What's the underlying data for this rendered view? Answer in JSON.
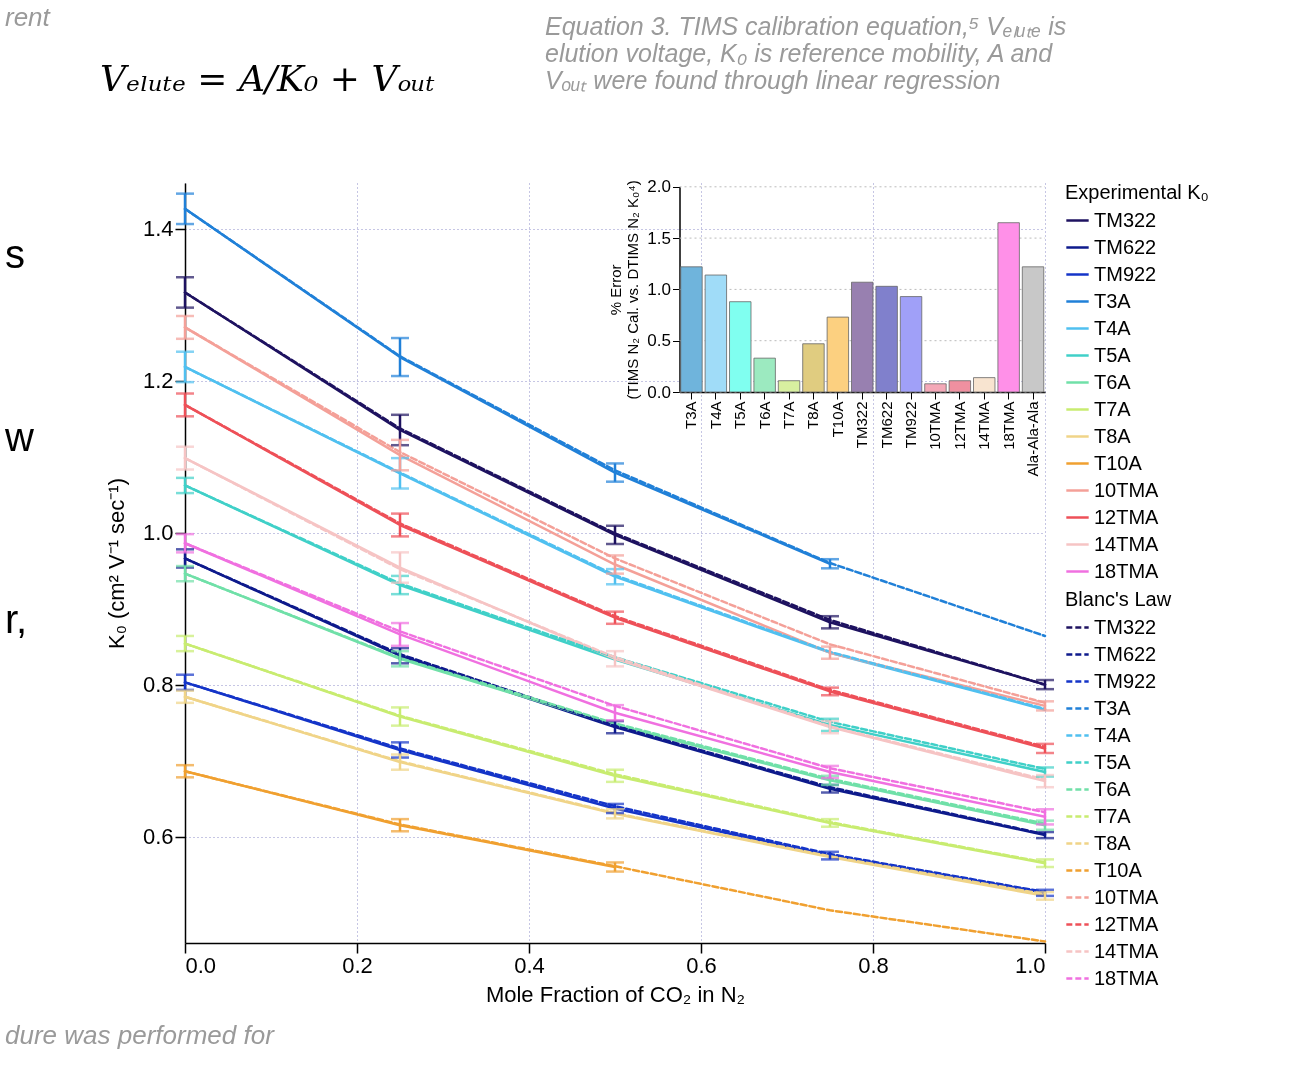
{
  "chart_data": [
    {
      "type": "line",
      "xlabel": "Mole Fraction of CO₂ in N₂",
      "ylabel": "K₀ (cm² V⁻¹ sec⁻¹)",
      "legend_title": [
        "Experimental K₀",
        "Blanc's Law"
      ],
      "legend": "right",
      "grid": true,
      "x": [
        0,
        0.25,
        0.5,
        0.75,
        1
      ],
      "xlim": [
        0,
        1
      ],
      "ylim": [
        0.46,
        1.46
      ],
      "xticks": [
        {
          "value": 0,
          "label": "0.0"
        },
        0.2,
        0.4,
        0.6,
        0.8,
        {
          "value": 1,
          "label": "1.0"
        }
      ],
      "yticks": [
        0.6,
        0.8,
        {
          "value": 1,
          "label": "1.0"
        },
        1.2,
        1.4
      ],
      "annotations": [
        "Vₑₗᵤₜₑ = A/K₀ + Vₒᵤₜ",
        "Equation 3. TIMS calibration equation,⁵ Vₑₗᵤₜₑ is elution voltage, K₀ is reference mobility, A and Vₒᵤₜ were found through linear regression",
        "rent",
        "s",
        "w",
        "r,",
        "dure was performed for"
      ],
      "series": [
        {
          "name": "TM322",
          "color": "#1e1260",
          "line_style": "solid",
          "values": [
            1.316,
            1.135,
            0.997,
            0.882,
            0.8
          ],
          "errors": [
            0.02,
            0.02,
            0.012,
            0.008,
            0.006
          ]
        },
        {
          "name": "TM622",
          "color": "#0e1a8c",
          "line_style": "solid",
          "values": [
            0.966,
            0.838,
            0.744,
            0.663,
            0.602
          ],
          "errors": [
            0.012,
            0.01,
            0.008,
            0.005,
            0.004
          ]
        },
        {
          "name": "TM922",
          "color": "#1434c8",
          "line_style": "solid",
          "values": [
            0.803,
            0.714,
            0.637,
            0.575,
            0.526
          ],
          "errors": [
            0.01,
            0.01,
            0.006,
            0.005,
            0.004
          ]
        },
        {
          "name": "T3A",
          "color": "#2080d8",
          "line_style": "solid",
          "values": [
            1.426,
            1.231,
            1.079,
            0.959,
            null
          ],
          "errors": [
            0.02,
            0.025,
            0.012,
            0.006,
            null
          ]
        },
        {
          "name": "T4A",
          "color": "#50c0f0",
          "line_style": "solid",
          "values": [
            1.218,
            1.078,
            0.942,
            0.842,
            0.767
          ],
          "errors": [
            0.02,
            0.02,
            0.01,
            null,
            null
          ]
        },
        {
          "name": "T5A",
          "color": "#40d0c8",
          "line_style": "solid",
          "values": [
            1.062,
            0.931,
            0.833,
            0.747,
            0.685
          ],
          "errors": [
            0.01,
            0.012,
            null,
            0.008,
            0.006
          ]
        },
        {
          "name": "T6A",
          "color": "#70e0a8",
          "line_style": "solid",
          "values": [
            0.946,
            0.834,
            0.747,
            0.674,
            0.615
          ],
          "errors": [
            0.01,
            0.01,
            null,
            0.006,
            0.006
          ]
        },
        {
          "name": "T7A",
          "color": "#c8ec70",
          "line_style": "solid",
          "values": [
            0.854,
            0.758,
            0.68,
            0.618,
            0.565
          ],
          "errors": [
            0.01,
            0.012,
            0.008,
            0.005,
            0.005
          ]
        },
        {
          "name": "T8A",
          "color": "#f0d488",
          "line_style": "solid",
          "values": [
            0.784,
            0.698,
            0.63,
            0.573,
            0.522
          ],
          "errors": [
            0.008,
            0.01,
            0.006,
            null,
            0.005
          ]
        },
        {
          "name": "T10A",
          "color": "#f0a030",
          "line_style": "solid",
          "values": [
            0.686,
            0.615,
            0.56,
            null,
            null
          ],
          "errors": [
            0.008,
            0.008,
            0.006,
            null,
            null
          ]
        },
        {
          "name": "10TMA",
          "color": "#f4a098",
          "line_style": "solid",
          "values": [
            1.27,
            1.102,
            0.958,
            0.842,
            0.772
          ],
          "errors": [
            0.015,
            0.02,
            0.012,
            0.008,
            0.006
          ]
        },
        {
          "name": "12TMA",
          "color": "#ee5058",
          "line_style": "solid",
          "values": [
            1.168,
            1.01,
            0.888,
            0.791,
            0.716
          ],
          "errors": [
            0.015,
            0.015,
            0.008,
            0.005,
            0.006
          ]
        },
        {
          "name": "14TMA",
          "color": "#f6c4c4",
          "line_style": "solid",
          "values": [
            1.098,
            0.954,
            0.834,
            0.744,
            0.673
          ],
          "errors": [
            0.015,
            0.02,
            0.01,
            0.008,
            0.008
          ]
        },
        {
          "name": "18TMA",
          "color": "#f070e0",
          "line_style": "solid",
          "values": [
            0.986,
            0.866,
            0.763,
            0.685,
            0.626
          ],
          "errors": [
            0.012,
            0.015,
            0.01,
            0.008,
            0.01
          ]
        },
        {
          "name": "TM322",
          "color": "#1e1260",
          "line_style": "dashed",
          "values": [
            1.316,
            1.137,
            0.999,
            0.885,
            0.8
          ]
        },
        {
          "name": "TM622",
          "color": "#0e1a8c",
          "line_style": "dashed",
          "values": [
            0.966,
            0.84,
            0.746,
            0.665,
            0.603
          ]
        },
        {
          "name": "TM922",
          "color": "#1434c8",
          "line_style": "dashed",
          "values": [
            0.803,
            0.716,
            0.64,
            0.577,
            0.527
          ]
        },
        {
          "name": "T3A",
          "color": "#2080d8",
          "line_style": "dashed",
          "values": [
            1.426,
            1.232,
            1.082,
            0.96,
            0.864
          ]
        },
        {
          "name": "T4A",
          "color": "#50c0f0",
          "line_style": "dashed",
          "values": [
            1.218,
            1.079,
            0.944,
            0.843,
            0.768
          ]
        },
        {
          "name": "T5A",
          "color": "#40d0c8",
          "line_style": "dashed",
          "values": [
            1.062,
            0.933,
            0.836,
            0.751,
            0.689
          ]
        },
        {
          "name": "T6A",
          "color": "#70e0a8",
          "line_style": "dashed",
          "values": [
            0.946,
            0.835,
            0.749,
            0.676,
            0.617
          ]
        },
        {
          "name": "T7A",
          "color": "#c8ec70",
          "line_style": "dashed",
          "values": [
            0.854,
            0.759,
            0.682,
            0.619,
            0.566
          ]
        },
        {
          "name": "T8A",
          "color": "#f0d488",
          "line_style": "dashed",
          "values": [
            0.784,
            0.699,
            0.631,
            0.574,
            0.524
          ]
        },
        {
          "name": "T10A",
          "color": "#f0a030",
          "line_style": "dashed",
          "values": [
            0.686,
            0.616,
            0.561,
            0.503,
            0.462
          ]
        },
        {
          "name": "10TMA",
          "color": "#f4a098",
          "line_style": "dashed",
          "values": [
            1.27,
            1.106,
            0.966,
            0.853,
            0.776
          ]
        },
        {
          "name": "12TMA",
          "color": "#ee5058",
          "line_style": "dashed",
          "values": [
            1.168,
            1.012,
            0.89,
            0.793,
            0.718
          ]
        },
        {
          "name": "14TMA",
          "color": "#f6c4c4",
          "line_style": "dashed",
          "values": [
            1.098,
            0.952,
            0.836,
            0.745,
            0.675
          ]
        },
        {
          "name": "18TMA",
          "color": "#f070e0",
          "line_style": "dashed",
          "values": [
            0.986,
            0.87,
            0.772,
            0.69,
            0.632
          ]
        }
      ]
    },
    {
      "type": "bar",
      "ylabel": "% Error\n(TIMS N₂ Cal. vs. DTIMS N₂ K₀⁴)",
      "grid": "y",
      "categories": [
        "T3A",
        "T4A",
        "T5A",
        "T6A",
        "T7A",
        "T8A",
        "T10A",
        "TM322",
        "TM622",
        "TM922",
        "10TMA",
        "12TMA",
        "14TMA",
        "18TMA",
        "Ala-Ala-Ala"
      ],
      "values": [
        1.22,
        1.14,
        0.88,
        0.33,
        0.11,
        0.47,
        0.73,
        1.07,
        1.03,
        0.93,
        0.08,
        0.11,
        0.14,
        1.65,
        1.22
      ],
      "colors": [
        "#6fb4dc",
        "#a0dcf8",
        "#80fff0",
        "#9ceac0",
        "#d8f0a0",
        "#e0cc80",
        "#fcd080",
        "#9880b0",
        "#8080cc",
        "#a0a0f8",
        "#f4a8b8",
        "#f090a0",
        "#f8e4d0",
        "#ff90e8",
        "#c8c8c8"
      ],
      "ylim": [
        0,
        2
      ],
      "yticks": [
        {
          "value": 0,
          "label": "0.0"
        },
        0.5,
        {
          "value": 1,
          "label": "1.0"
        },
        1.5,
        {
          "value": 2,
          "label": "2.0"
        }
      ]
    }
  ]
}
